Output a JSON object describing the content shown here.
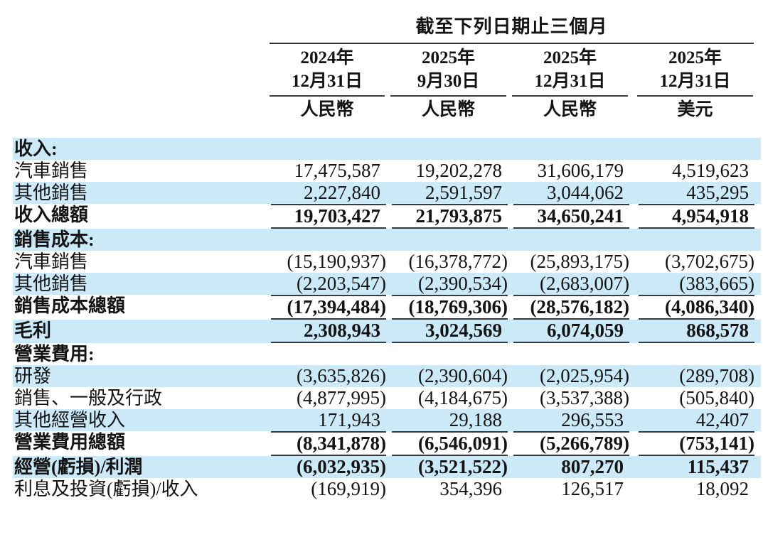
{
  "table": {
    "title": "截至下列日期止三個月",
    "columns": [
      {
        "year": "2024年",
        "date": "12月31日",
        "currency": "人民幣"
      },
      {
        "year": "2025年",
        "date": "9月30日",
        "currency": "人民幣"
      },
      {
        "year": "2025年",
        "date": "12月31日",
        "currency": "人民幣"
      },
      {
        "year": "2025年",
        "date": "12月31日",
        "currency": "美元"
      }
    ],
    "rows": [
      {
        "label": "收入:",
        "values": [
          "",
          "",
          "",
          ""
        ],
        "bold": true,
        "shaded": true
      },
      {
        "label": "汽車銷售",
        "values": [
          "17,475,587",
          "19,202,278",
          "31,606,179",
          "4,519,623"
        ],
        "bold": false,
        "shaded": false
      },
      {
        "label": "其他銷售",
        "values": [
          "2,227,840",
          "2,591,597",
          "3,044,062",
          "435,295"
        ],
        "bold": false,
        "shaded": true
      },
      {
        "label": "收入總額",
        "values": [
          "19,703,427",
          "21,793,875",
          "34,650,241",
          "4,954,918"
        ],
        "bold": true,
        "shaded": false,
        "rule_above": true,
        "rule_below": true
      },
      {
        "label": "銷售成本:",
        "values": [
          "",
          "",
          "",
          ""
        ],
        "bold": true,
        "shaded": true
      },
      {
        "label": "汽車銷售",
        "values": [
          "(15,190,937)",
          "(16,378,772)",
          "(25,893,175)",
          "(3,702,675)"
        ],
        "bold": false,
        "shaded": false
      },
      {
        "label": "其他銷售",
        "values": [
          "(2,203,547)",
          "(2,390,534)",
          "(2,683,007)",
          "(383,665)"
        ],
        "bold": false,
        "shaded": true
      },
      {
        "label": "銷售成本總額",
        "values": [
          "(17,394,484)",
          "(18,769,306)",
          "(28,576,182)",
          "(4,086,340)"
        ],
        "bold": true,
        "shaded": false,
        "rule_above": true,
        "rule_below": true
      },
      {
        "label": "毛利",
        "values": [
          "2,308,943",
          "3,024,569",
          "6,074,059",
          "868,578"
        ],
        "bold": true,
        "shaded": true,
        "rule_below": true
      },
      {
        "label": "營業費用:",
        "values": [
          "",
          "",
          "",
          ""
        ],
        "bold": true,
        "shaded": false
      },
      {
        "label": "研發",
        "values": [
          "(3,635,826)",
          "(2,390,604)",
          "(2,025,954)",
          "(289,708)"
        ],
        "bold": false,
        "shaded": true
      },
      {
        "label": "銷售、一般及行政",
        "values": [
          "(4,877,995)",
          "(4,184,675)",
          "(3,537,388)",
          "(505,840)"
        ],
        "bold": false,
        "shaded": false
      },
      {
        "label": "其他經營收入",
        "values": [
          "171,943",
          "29,188",
          "296,553",
          "42,407"
        ],
        "bold": false,
        "shaded": true
      },
      {
        "label": "營業費用總額",
        "values": [
          "(8,341,878)",
          "(6,546,091)",
          "(5,266,789)",
          "(753,141)"
        ],
        "bold": true,
        "shaded": false,
        "rule_above": true,
        "rule_below": true
      },
      {
        "label": "經營(虧損)/利潤",
        "values": [
          "(6,032,935)",
          "(3,521,522)",
          "807,270",
          "115,437"
        ],
        "bold": true,
        "shaded": true
      },
      {
        "label": "利息及投資(虧損)/收入",
        "values": [
          "(169,919)",
          "354,396",
          "126,517",
          "18,092"
        ],
        "bold": false,
        "shaded": false
      }
    ]
  }
}
